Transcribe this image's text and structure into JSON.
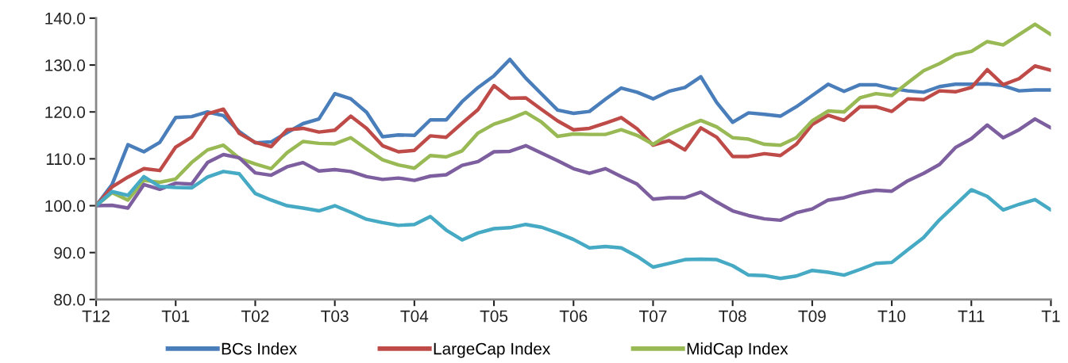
{
  "chart_data": {
    "type": "line",
    "ylim": [
      80,
      140
    ],
    "categories": [
      "T12",
      null,
      null,
      null,
      null,
      "T01",
      null,
      null,
      null,
      null,
      "T02",
      null,
      null,
      null,
      null,
      "T03",
      null,
      null,
      null,
      null,
      "T04",
      null,
      null,
      null,
      null,
      "T05",
      null,
      null,
      null,
      null,
      "T06",
      null,
      null,
      null,
      null,
      "T07",
      null,
      null,
      null,
      null,
      "T08",
      null,
      null,
      null,
      null,
      "T09",
      null,
      null,
      null,
      null,
      "T10",
      null,
      null,
      null,
      null,
      "T11",
      null,
      null,
      null,
      null,
      "T1"
    ],
    "yticks": [
      {
        "value": 80,
        "label": "80.0"
      },
      {
        "value": 90,
        "label": "90.0"
      },
      {
        "value": 100,
        "label": "100.0"
      },
      {
        "value": 110,
        "label": "110.0"
      },
      {
        "value": 120,
        "label": "120.0"
      },
      {
        "value": 130,
        "label": "130.0"
      },
      {
        "value": 140,
        "label": "140.0"
      }
    ],
    "grid": false,
    "legend": "bottom",
    "marker": "none",
    "line_style": "solid",
    "series": [
      {
        "name": "BCs Index",
        "color": "#4a7ebb",
        "values": [
          100.0,
          104.5,
          113.0,
          111.5,
          113.5,
          118.8,
          119.0,
          120.0,
          119.2,
          115.8,
          113.4,
          113.6,
          115.6,
          117.5,
          118.5,
          123.9,
          122.8,
          119.9,
          114.7,
          115.1,
          115.0,
          118.3,
          118.3,
          122.2,
          125.2,
          127.7,
          131.2,
          127.2,
          123.8,
          120.4,
          119.7,
          120.1,
          122.7,
          125.1,
          124.2,
          122.8,
          124.4,
          125.2,
          127.5,
          122.0,
          117.8,
          119.8,
          119.5,
          119.1,
          121.1,
          123.5,
          125.9,
          124.4,
          125.8,
          125.8,
          125.0,
          124.5,
          124.2,
          125.4,
          125.9,
          125.9,
          126.0,
          125.6,
          124.5,
          124.7,
          124.7
        ]
      },
      {
        "name": "LargeCap Index",
        "color": "#be4b48",
        "values": [
          100.0,
          104.0,
          106.1,
          107.9,
          107.5,
          112.5,
          114.6,
          119.6,
          120.6,
          115.4,
          113.5,
          112.6,
          116.2,
          116.5,
          115.7,
          116.1,
          119.1,
          116.5,
          112.8,
          111.5,
          111.8,
          114.9,
          114.6,
          117.6,
          120.5,
          125.6,
          122.9,
          123.0,
          120.5,
          118.1,
          116.2,
          116.5,
          117.6,
          118.8,
          116.4,
          112.9,
          113.9,
          111.9,
          116.6,
          114.6,
          110.5,
          110.5,
          111.1,
          110.7,
          113.1,
          117.3,
          119.3,
          118.2,
          121.1,
          121.1,
          120.1,
          122.8,
          122.6,
          124.5,
          124.3,
          125.2,
          129.0,
          125.8,
          127.1,
          129.8,
          128.9
        ]
      },
      {
        "name": "MidCap Index",
        "color": "#98b954",
        "values": [
          100.0,
          102.8,
          101.2,
          105.4,
          105.0,
          105.7,
          109.2,
          111.9,
          112.9,
          110.1,
          108.9,
          107.9,
          111.3,
          113.7,
          113.3,
          113.2,
          114.5,
          112.1,
          109.8,
          108.7,
          108.0,
          110.7,
          110.4,
          111.7,
          115.5,
          117.4,
          118.5,
          119.9,
          117.8,
          114.8,
          115.3,
          115.2,
          115.2,
          116.2,
          115.0,
          113.1,
          115.2,
          116.8,
          118.2,
          116.8,
          114.5,
          114.2,
          113.1,
          112.9,
          114.5,
          118.1,
          120.2,
          120.0,
          123.0,
          123.9,
          123.5,
          126.2,
          128.8,
          130.3,
          132.2,
          132.9,
          135.0,
          134.3,
          136.5,
          138.7,
          136.5
        ]
      },
      {
        "color": "#7d5fa0",
        "values": [
          100.0,
          100.1,
          99.5,
          104.5,
          103.5,
          104.8,
          104.6,
          109.2,
          110.9,
          110.2,
          107.0,
          106.5,
          108.3,
          109.2,
          107.4,
          107.7,
          107.3,
          106.2,
          105.6,
          105.9,
          105.4,
          106.3,
          106.6,
          108.6,
          109.4,
          111.5,
          111.6,
          112.8,
          111.2,
          109.6,
          107.9,
          106.9,
          107.9,
          106.2,
          104.6,
          101.4,
          101.7,
          101.7,
          102.9,
          100.8,
          98.9,
          97.9,
          97.2,
          96.9,
          98.5,
          99.3,
          101.2,
          101.7,
          102.7,
          103.3,
          103.1,
          105.3,
          106.9,
          108.8,
          112.4,
          114.3,
          117.2,
          114.5,
          116.2,
          118.5,
          116.6
        ]
      },
      {
        "color": "#46aac5",
        "values": [
          100.0,
          103.0,
          102.2,
          106.2,
          104.1,
          103.9,
          103.8,
          106.1,
          107.3,
          106.8,
          102.6,
          101.2,
          100.0,
          99.5,
          98.9,
          100.0,
          98.6,
          97.1,
          96.4,
          95.8,
          96.0,
          97.7,
          94.8,
          92.7,
          94.2,
          95.1,
          95.3,
          96.0,
          95.4,
          94.2,
          92.8,
          91.0,
          91.3,
          91.0,
          89.2,
          86.9,
          87.7,
          88.5,
          88.6,
          88.5,
          87.2,
          85.2,
          85.1,
          84.5,
          85.0,
          86.2,
          85.8,
          85.2,
          86.4,
          87.7,
          87.9,
          90.6,
          93.2,
          97.0,
          100.2,
          103.4,
          102.0,
          99.1,
          100.3,
          101.3,
          99.1
        ]
      }
    ]
  }
}
